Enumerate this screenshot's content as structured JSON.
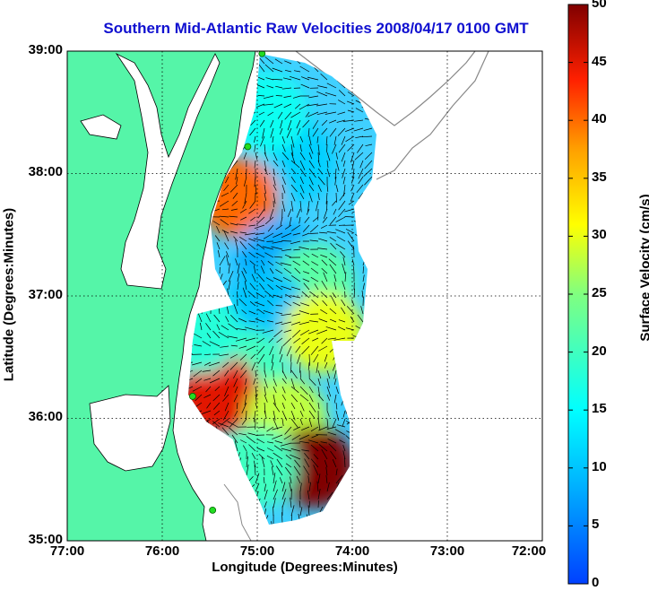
{
  "title": "Southern Mid-Atlantic Raw Velocities 2008/04/17 0100 GMT",
  "xlabel": "Longitude (Degrees:Minutes)",
  "ylabel": "Latitude (Degrees:Minutes)",
  "colorbar_label": "Surface Velocity (cm/s)",
  "x_ticks": [
    "77:00",
    "76:00",
    "75:00",
    "74:00",
    "73:00",
    "72:00"
  ],
  "y_ticks": [
    "39:00",
    "38:00",
    "37:00",
    "36:00",
    "35:00"
  ],
  "colorbar_ticks": [
    "50",
    "45",
    "40",
    "35",
    "30",
    "25",
    "20",
    "15",
    "10",
    "5",
    "0"
  ],
  "colors": {
    "land": "#55f5a8",
    "title": "#1010d0",
    "grid": "#000000",
    "bathymetry": "#888888",
    "station": "#22dd22"
  },
  "chart_data": {
    "type": "heatmap",
    "title": "Southern Mid-Atlantic Raw Velocities 2008/04/17 0100 GMT",
    "xlabel": "Longitude (Degrees:Minutes)",
    "ylabel": "Latitude (Degrees:Minutes)",
    "xlim": [
      -77,
      -72
    ],
    "ylim": [
      35,
      39
    ],
    "colorbar": {
      "label": "Surface Velocity (cm/s)",
      "min": 0,
      "max": 50,
      "colormap": "jet"
    },
    "grid": true,
    "regions": [
      {
        "lon": -74.6,
        "lat": 38.1,
        "speed": 11
      },
      {
        "lon": -74.9,
        "lat": 38.5,
        "speed": 16
      },
      {
        "lon": -75.2,
        "lat": 37.8,
        "speed": 40
      },
      {
        "lon": -74.8,
        "lat": 37.3,
        "speed": 8
      },
      {
        "lon": -74.4,
        "lat": 37.1,
        "speed": 22
      },
      {
        "lon": -74.9,
        "lat": 36.9,
        "speed": 10
      },
      {
        "lon": -74.3,
        "lat": 36.7,
        "speed": 30
      },
      {
        "lon": -75.1,
        "lat": 36.4,
        "speed": 20
      },
      {
        "lon": -75.4,
        "lat": 36.2,
        "speed": 45
      },
      {
        "lon": -74.7,
        "lat": 36.0,
        "speed": 28
      },
      {
        "lon": -74.4,
        "lat": 35.6,
        "speed": 50
      },
      {
        "lon": -75.0,
        "lat": 35.6,
        "speed": 20
      },
      {
        "lon": -75.6,
        "lat": 36.7,
        "speed": 18
      }
    ],
    "stations": [
      {
        "lon": -74.95,
        "lat": 38.98
      },
      {
        "lon": -75.1,
        "lat": 38.22
      },
      {
        "lon": -75.68,
        "lat": 36.18
      },
      {
        "lon": -75.47,
        "lat": 35.25
      }
    ]
  }
}
